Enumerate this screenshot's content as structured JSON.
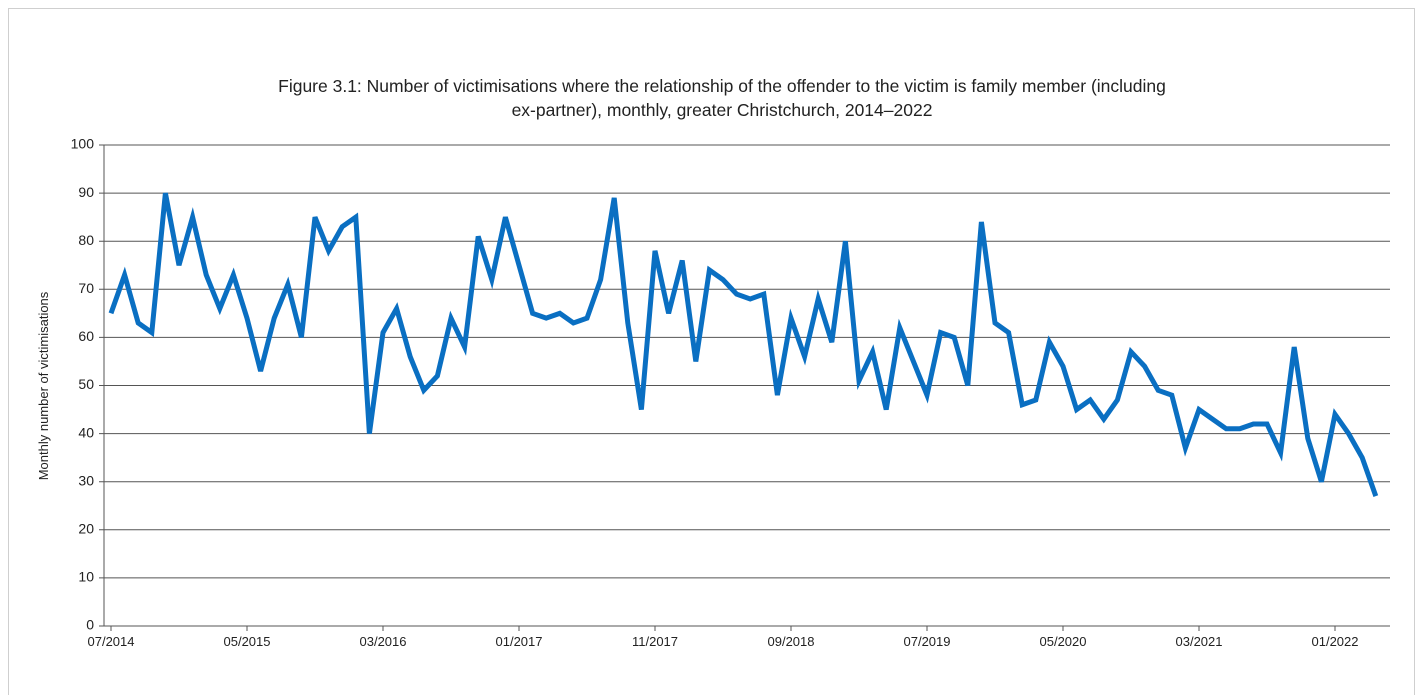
{
  "chart_data": {
    "type": "line",
    "title": [
      "Figure 3.1: Number of victimisations where the relationship of the offender to the victim is family member (including",
      "ex-partner), monthly, greater Christchurch, 2014–2022"
    ],
    "y_label": "Monthly number of victimisations",
    "categories": [
      "07/2014",
      null,
      null,
      null,
      null,
      null,
      null,
      null,
      null,
      null,
      "05/2015",
      null,
      null,
      null,
      null,
      null,
      null,
      null,
      null,
      null,
      "03/2016",
      null,
      null,
      null,
      null,
      null,
      null,
      null,
      null,
      null,
      "01/2017",
      null,
      null,
      null,
      null,
      null,
      null,
      null,
      null,
      null,
      "11/2017",
      null,
      null,
      null,
      null,
      null,
      null,
      null,
      null,
      null,
      "09/2018",
      null,
      null,
      null,
      null,
      null,
      null,
      null,
      null,
      null,
      "07/2019",
      null,
      null,
      null,
      null,
      null,
      null,
      null,
      null,
      null,
      "05/2020",
      null,
      null,
      null,
      null,
      null,
      null,
      null,
      null,
      null,
      "03/2021",
      null,
      null,
      null,
      null,
      null,
      null,
      null,
      null,
      null,
      "01/2022",
      null,
      null,
      null
    ],
    "series": [
      {
        "name": "Victimisations",
        "color": "#0a6fc2",
        "values": [
          65,
          73,
          63,
          61,
          90,
          75,
          85,
          73,
          66,
          73,
          64,
          53,
          64,
          71,
          60,
          85,
          78,
          83,
          85,
          40,
          61,
          66,
          56,
          49,
          52,
          64,
          58,
          81,
          72,
          85,
          75,
          65,
          64,
          65,
          63,
          64,
          72,
          89,
          63,
          45,
          78,
          65,
          76,
          55,
          74,
          72,
          69,
          68,
          69,
          48,
          64,
          56,
          68,
          59,
          80,
          51,
          57,
          45,
          62,
          55,
          48,
          61,
          60,
          50,
          84,
          63,
          61,
          46,
          47,
          59,
          54,
          45,
          47,
          43,
          47,
          57,
          54,
          49,
          48,
          37,
          45,
          43,
          41,
          41,
          42,
          42,
          36,
          58,
          39,
          30,
          44,
          40,
          35,
          27
        ]
      }
    ],
    "ylim": [
      0,
      100
    ],
    "yticks": [
      0,
      10,
      20,
      30,
      40,
      50,
      60,
      70,
      80,
      90,
      100
    ],
    "grid": true
  }
}
